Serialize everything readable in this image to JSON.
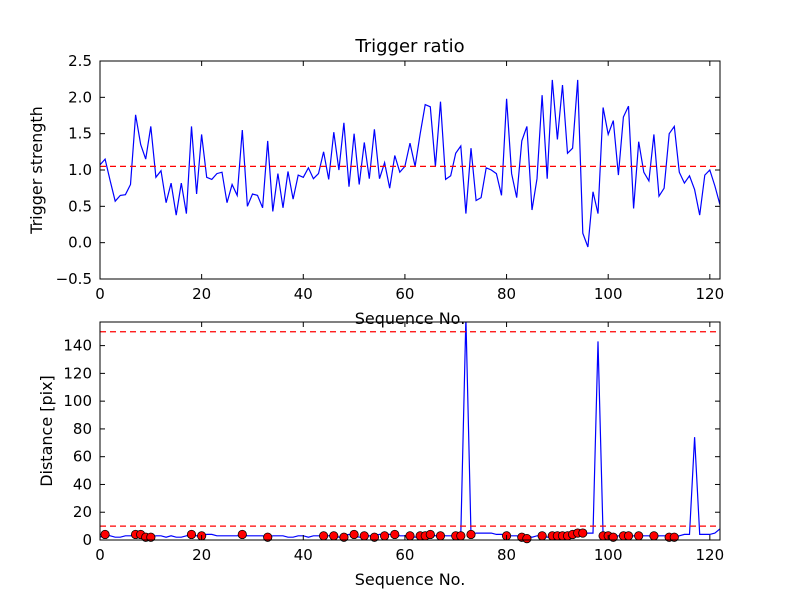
{
  "chart_data": [
    {
      "type": "line",
      "title": "Trigger ratio",
      "xlabel": "Sequence No.",
      "ylabel": "Trigger strength",
      "xlim": [
        0,
        122
      ],
      "ylim": [
        -0.5,
        2.5
      ],
      "xticks": [
        0,
        20,
        40,
        60,
        80,
        100,
        120
      ],
      "yticks": [
        -0.5,
        0.0,
        0.5,
        1.0,
        1.5,
        2.0,
        2.5
      ],
      "xtick_labels": [
        "0",
        "20",
        "40",
        "60",
        "80",
        "100",
        "120"
      ],
      "ytick_labels": [
        "−0.5",
        "0.0",
        "0.5",
        "1.0",
        "1.5",
        "2.0",
        "2.5"
      ],
      "grid": false,
      "series": [
        {
          "color": "#0000ff",
          "x": [
            0,
            1,
            2,
            3,
            4,
            5,
            6,
            7,
            8,
            9,
            10,
            11,
            12,
            13,
            14,
            15,
            16,
            17,
            18,
            19,
            20,
            21,
            22,
            23,
            24,
            25,
            26,
            27,
            28,
            29,
            30,
            31,
            32,
            33,
            34,
            35,
            36,
            37,
            38,
            39,
            40,
            41,
            42,
            43,
            44,
            45,
            46,
            47,
            48,
            49,
            50,
            51,
            52,
            53,
            54,
            55,
            56,
            57,
            58,
            59,
            60,
            61,
            62,
            63,
            64,
            65,
            66,
            67,
            68,
            69,
            70,
            71,
            72,
            73,
            74,
            75,
            76,
            77,
            78,
            79,
            80,
            81,
            82,
            83,
            84,
            85,
            86,
            87,
            88,
            89,
            90,
            91,
            92,
            93,
            94,
            95,
            96,
            97,
            98,
            99,
            100,
            101,
            102,
            103,
            104,
            105,
            106,
            107,
            108,
            109,
            110,
            111,
            112,
            113,
            114,
            115,
            116,
            117,
            118,
            119,
            120,
            121,
            122
          ],
          "y": [
            1.07,
            1.15,
            0.85,
            0.57,
            0.65,
            0.66,
            0.8,
            1.76,
            1.35,
            1.15,
            1.6,
            0.9,
            0.99,
            0.55,
            0.82,
            0.38,
            0.82,
            0.4,
            1.6,
            0.67,
            1.49,
            0.9,
            0.87,
            0.95,
            0.97,
            0.55,
            0.8,
            0.65,
            1.55,
            0.5,
            0.67,
            0.65,
            0.48,
            1.4,
            0.43,
            0.95,
            0.48,
            0.98,
            0.6,
            0.93,
            0.9,
            1.03,
            0.88,
            0.95,
            1.25,
            0.87,
            1.52,
            1.0,
            1.65,
            0.77,
            1.5,
            0.8,
            1.38,
            0.88,
            1.56,
            0.88,
            1.1,
            0.75,
            1.2,
            0.97,
            1.05,
            1.37,
            1.05,
            1.5,
            1.9,
            1.87,
            1.05,
            1.94,
            0.87,
            0.92,
            1.23,
            1.33,
            0.4,
            1.3,
            0.58,
            0.62,
            1.03,
            1.0,
            0.95,
            0.65,
            1.98,
            0.95,
            0.62,
            1.4,
            1.6,
            0.45,
            0.88,
            2.03,
            0.88,
            2.24,
            1.42,
            2.17,
            1.23,
            1.3,
            2.24,
            0.13,
            -0.06,
            0.7,
            0.4,
            1.86,
            1.49,
            1.68,
            0.93,
            1.73,
            1.88,
            0.47,
            1.39,
            0.97,
            0.85,
            1.49,
            0.64,
            0.75,
            1.5,
            1.6,
            0.97,
            0.82,
            0.92,
            0.73,
            0.38,
            0.93,
            1.0,
            0.78,
            0.52
          ]
        }
      ],
      "reference_lines": [
        {
          "orientation": "horizontal",
          "y": 1.05,
          "color": "#ff0000",
          "style": "dashed"
        }
      ]
    },
    {
      "type": "line",
      "title": "",
      "xlabel": "Sequence No.",
      "ylabel": "Distance [pix]",
      "xlim": [
        0,
        122
      ],
      "ylim": [
        0,
        157
      ],
      "xticks": [
        0,
        20,
        40,
        60,
        80,
        100,
        120
      ],
      "yticks": [
        0,
        20,
        40,
        60,
        80,
        100,
        120,
        140
      ],
      "xtick_labels": [
        "0",
        "20",
        "40",
        "60",
        "80",
        "100",
        "120"
      ],
      "ytick_labels": [
        "0",
        "20",
        "40",
        "60",
        "80",
        "100",
        "120",
        "140"
      ],
      "grid": false,
      "series": [
        {
          "color": "#0000ff",
          "x": [
            0,
            1,
            2,
            3,
            4,
            5,
            6,
            7,
            8,
            9,
            10,
            11,
            12,
            13,
            14,
            15,
            16,
            17,
            18,
            19,
            20,
            21,
            22,
            23,
            24,
            25,
            26,
            27,
            28,
            29,
            30,
            31,
            32,
            33,
            34,
            35,
            36,
            37,
            38,
            39,
            40,
            41,
            42,
            43,
            44,
            45,
            46,
            47,
            48,
            49,
            50,
            51,
            52,
            53,
            54,
            55,
            56,
            57,
            58,
            59,
            60,
            61,
            62,
            63,
            64,
            65,
            66,
            67,
            68,
            69,
            70,
            71,
            72,
            73,
            74,
            75,
            76,
            77,
            78,
            79,
            80,
            81,
            82,
            83,
            84,
            85,
            86,
            87,
            88,
            89,
            90,
            91,
            92,
            93,
            94,
            95,
            96,
            97,
            98,
            99,
            100,
            101,
            102,
            103,
            104,
            105,
            106,
            107,
            108,
            109,
            110,
            111,
            112,
            113,
            114,
            115,
            116,
            117,
            118,
            119,
            120,
            121,
            122
          ],
          "y": [
            2,
            4,
            3,
            2,
            2,
            3,
            3,
            4,
            4,
            2,
            2,
            3,
            3,
            2,
            3,
            2,
            2,
            3,
            4,
            3,
            3,
            4,
            4,
            3,
            3,
            3,
            3,
            3,
            4,
            3,
            3,
            3,
            3,
            2,
            3,
            3,
            3,
            2,
            2,
            3,
            3,
            2,
            3,
            3,
            3,
            3,
            4,
            2,
            3,
            4,
            3,
            2,
            2,
            3,
            3,
            4,
            4,
            4,
            4,
            3,
            3,
            3,
            2,
            3,
            4,
            4,
            3,
            4,
            3,
            3,
            3,
            4,
            160,
            4,
            5,
            5,
            5,
            5,
            4,
            4,
            3,
            3,
            3,
            2,
            3,
            2,
            3,
            3,
            2,
            3,
            3,
            3,
            4,
            5,
            6,
            5,
            5,
            5,
            143,
            3,
            2,
            2,
            3,
            3,
            2,
            3,
            3,
            3,
            3,
            2,
            3,
            3,
            3,
            2,
            3,
            4,
            4,
            74,
            4,
            4,
            4,
            5,
            8
          ]
        },
        {
          "color": "#ff0000",
          "marker": "circle",
          "x": [
            1,
            7,
            8,
            9,
            10,
            18,
            20,
            28,
            33,
            44,
            46,
            48,
            50,
            52,
            54,
            56,
            58,
            61,
            63,
            64,
            65,
            67,
            70,
            71,
            73,
            80,
            83,
            84,
            87,
            89,
            90,
            91,
            92,
            93,
            94,
            95,
            99,
            100,
            101,
            103,
            104,
            106,
            109,
            112,
            113
          ],
          "y": [
            4,
            4,
            4,
            2,
            2,
            4,
            3,
            4,
            2,
            3,
            3,
            2,
            4,
            3,
            2,
            3,
            4,
            3,
            3,
            3,
            4,
            3,
            3,
            3,
            4,
            3,
            2,
            1,
            3,
            3,
            3,
            3,
            3,
            4,
            5,
            5,
            3,
            3,
            2,
            3,
            3,
            3,
            3,
            2,
            2
          ]
        }
      ],
      "reference_lines": [
        {
          "orientation": "horizontal",
          "y": 10,
          "color": "#ff0000",
          "style": "dashed"
        },
        {
          "orientation": "horizontal",
          "y": 150,
          "color": "#ff0000",
          "style": "dashed"
        }
      ]
    }
  ]
}
